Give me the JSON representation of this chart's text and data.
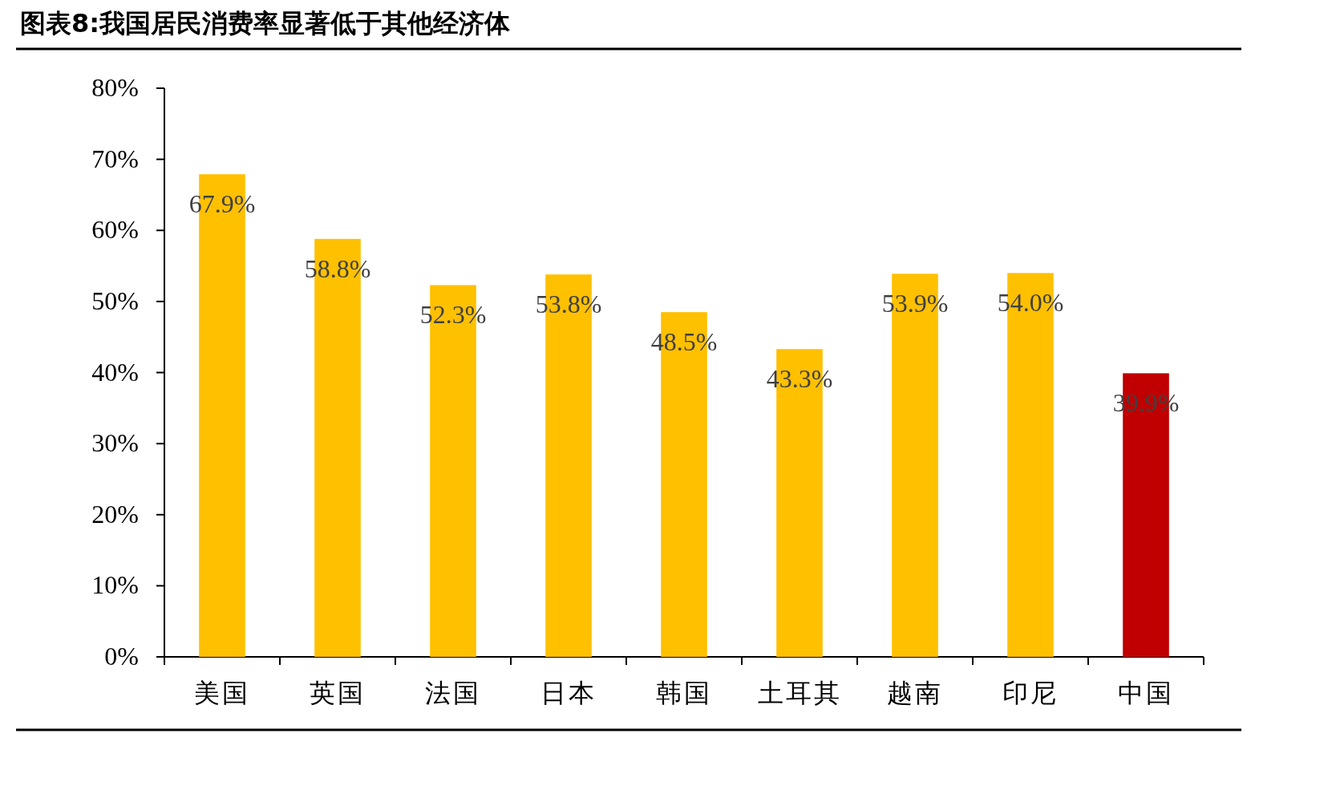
{
  "chart_data": {
    "type": "bar",
    "title": "图表8:我国居民消费率显著低于其他经济体",
    "categories": [
      "美国",
      "英国",
      "法国",
      "日本",
      "韩国",
      "土耳其",
      "越南",
      "印尼",
      "中国"
    ],
    "values": [
      67.9,
      58.8,
      52.3,
      53.8,
      48.5,
      43.3,
      53.9,
      54.0,
      39.9
    ],
    "colors": [
      "#ffc000",
      "#ffc000",
      "#ffc000",
      "#ffc000",
      "#ffc000",
      "#ffc000",
      "#ffc000",
      "#ffc000",
      "#c00000"
    ],
    "value_labels": [
      "67.9%",
      "58.8%",
      "52.3%",
      "53.8%",
      "48.5%",
      "43.3%",
      "53.9%",
      "54.0%",
      "39.9%"
    ],
    "ylim": [
      0,
      80
    ],
    "yticks": [
      {
        "value": 0,
        "label": "0%"
      },
      {
        "value": 10,
        "label": "10%"
      },
      {
        "value": 20,
        "label": "20%"
      },
      {
        "value": 30,
        "label": "30%"
      },
      {
        "value": 40,
        "label": "40%"
      },
      {
        "value": 50,
        "label": "50%"
      },
      {
        "value": 60,
        "label": "60%"
      },
      {
        "value": 70,
        "label": "70%"
      },
      {
        "value": 80,
        "label": "80%"
      }
    ],
    "grid": false
  }
}
